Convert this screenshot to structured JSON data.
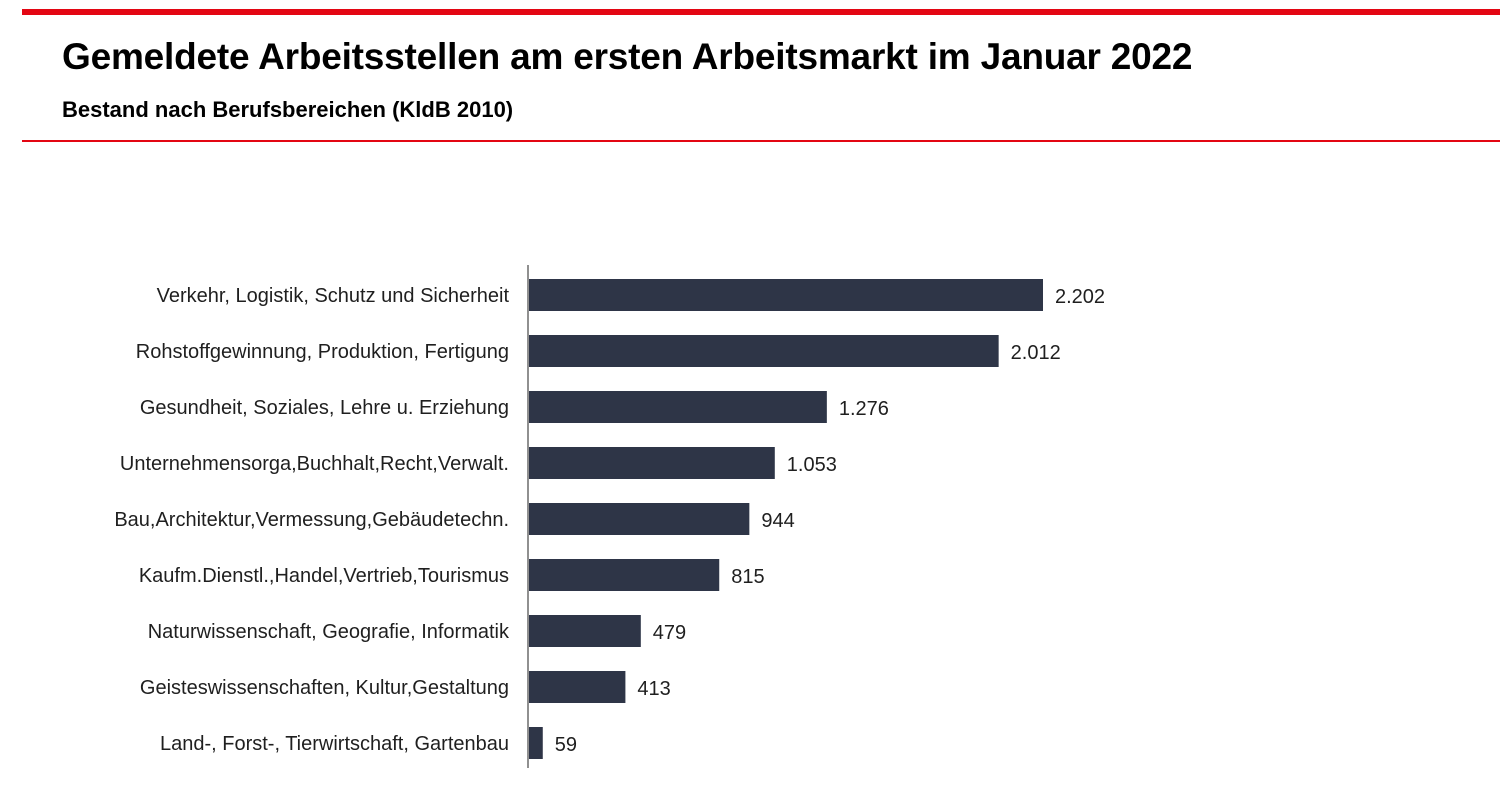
{
  "header": {
    "title": "Gemeldete Arbeitsstellen am ersten Arbeitsmarkt im Januar 2022",
    "subtitle": "Bestand nach Berufsbereichen (KldB 2010)"
  },
  "colors": {
    "accent": "#e30613",
    "bar": "#2e3547",
    "axis": "#6b6b6b"
  },
  "chart_data": {
    "type": "bar",
    "orientation": "horizontal",
    "categories": [
      "Verkehr, Logistik, Schutz und Sicherheit",
      "Rohstoffgewinnung, Produktion, Fertigung",
      "Gesundheit, Soziales, Lehre u. Erziehung",
      "Unternehmensorga,Buchhalt,Recht,Verwalt.",
      "Bau,Architektur,Vermessung,Gebäudetechn.",
      "Kaufm.Dienstl.,Handel,Vertrieb,Tourismus",
      "Naturwissenschaft, Geografie, Informatik",
      "Geisteswissenschaften, Kultur,Gestaltung",
      "Land-, Forst-, Tierwirtschaft, Gartenbau"
    ],
    "values": [
      2202,
      2012,
      1276,
      1053,
      944,
      815,
      479,
      413,
      59
    ],
    "value_labels": [
      "2.202",
      "2.012",
      "1.276",
      "1.053",
      "944",
      "815",
      "479",
      "413",
      "59"
    ],
    "xlim": [
      0,
      2202
    ],
    "grid": false,
    "legend": "none"
  }
}
